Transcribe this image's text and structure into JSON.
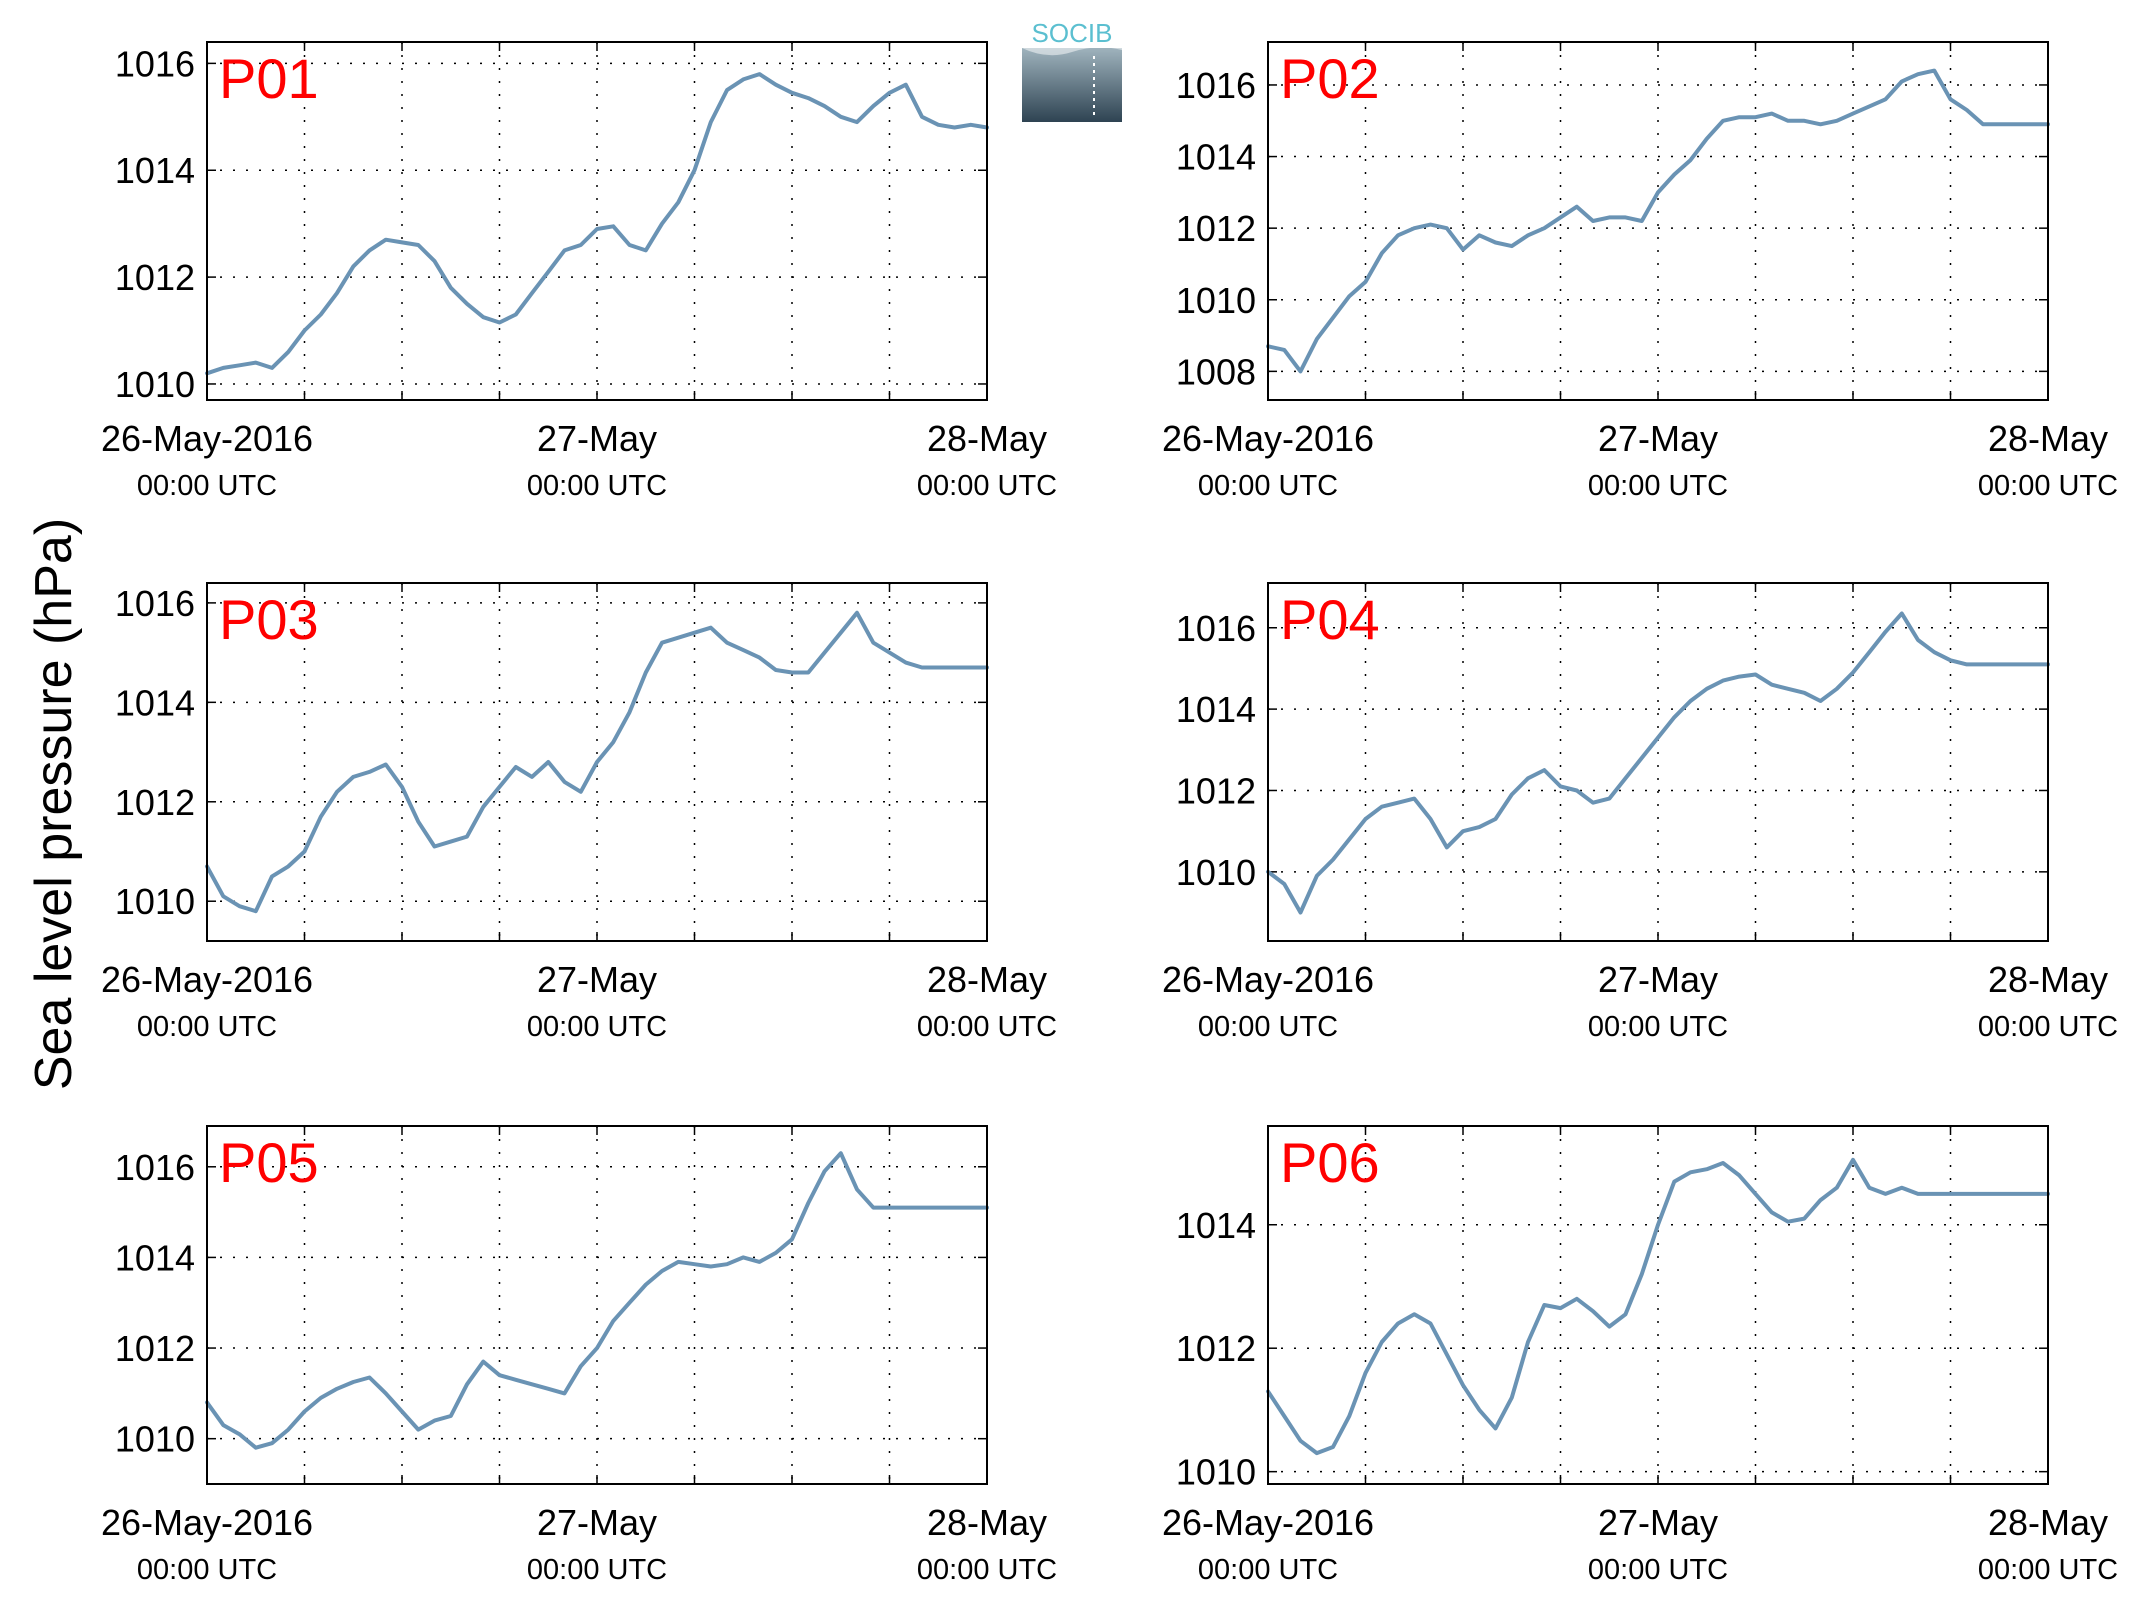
{
  "figure": {
    "ylabel": "Sea level pressure (hPa)",
    "logo_text": "SOCIB",
    "line_color": "#6a93b4",
    "label_color": "#ff0000"
  },
  "chart_data": [
    {
      "type": "line",
      "title": "P01",
      "x_ticks": [
        {
          "label": "26-May-2016",
          "sub": "00:00 UTC"
        },
        {
          "label": "27-May",
          "sub": "00:00 UTC"
        },
        {
          "label": "28-May",
          "sub": "00:00 UTC"
        }
      ],
      "xlim": [
        0,
        48
      ],
      "ylim": [
        1009.7,
        1016.4
      ],
      "yticks": [
        1010,
        1012,
        1014,
        1016
      ],
      "grid": true,
      "x": [
        0,
        1,
        2,
        3,
        4,
        5,
        6,
        7,
        8,
        9,
        10,
        11,
        12,
        13,
        14,
        15,
        16,
        17,
        18,
        19,
        20,
        21,
        22,
        23,
        24,
        25,
        26,
        27,
        28,
        29,
        30,
        31,
        32,
        33,
        34,
        35,
        36,
        37,
        38,
        39,
        40,
        41,
        42,
        43,
        44,
        45,
        46,
        47,
        48
      ],
      "y": [
        1010.2,
        1010.3,
        1010.35,
        1010.4,
        1010.3,
        1010.6,
        1011.0,
        1011.3,
        1011.7,
        1012.2,
        1012.5,
        1012.7,
        1012.65,
        1012.6,
        1012.3,
        1011.8,
        1011.5,
        1011.25,
        1011.15,
        1011.3,
        1011.7,
        1012.1,
        1012.5,
        1012.6,
        1012.9,
        1012.95,
        1012.6,
        1012.5,
        1013.0,
        1013.4,
        1014.0,
        1014.9,
        1015.5,
        1015.7,
        1015.8,
        1015.6,
        1015.45,
        1015.35,
        1015.2,
        1015.0,
        1014.9,
        1015.2,
        1015.45,
        1015.6,
        1015.0,
        1014.85,
        1014.8,
        1014.85,
        1014.8
      ]
    },
    {
      "type": "line",
      "title": "P02",
      "x_ticks": [
        {
          "label": "26-May-2016",
          "sub": "00:00 UTC"
        },
        {
          "label": "27-May",
          "sub": "00:00 UTC"
        },
        {
          "label": "28-May",
          "sub": "00:00 UTC"
        }
      ],
      "xlim": [
        0,
        48
      ],
      "ylim": [
        1007.2,
        1017.2
      ],
      "yticks": [
        1008,
        1010,
        1012,
        1014,
        1016
      ],
      "grid": true,
      "x": [
        0,
        1,
        2,
        3,
        4,
        5,
        6,
        7,
        8,
        9,
        10,
        11,
        12,
        13,
        14,
        15,
        16,
        17,
        18,
        19,
        20,
        21,
        22,
        23,
        24,
        25,
        26,
        27,
        28,
        29,
        30,
        31,
        32,
        33,
        34,
        35,
        36,
        37,
        38,
        39,
        40,
        41,
        42,
        43,
        44,
        45,
        46,
        47,
        48
      ],
      "y": [
        1008.7,
        1008.6,
        1008.0,
        1008.9,
        1009.5,
        1010.1,
        1010.5,
        1011.3,
        1011.8,
        1012.0,
        1012.1,
        1012.0,
        1011.4,
        1011.8,
        1011.6,
        1011.5,
        1011.8,
        1012.0,
        1012.3,
        1012.6,
        1012.2,
        1012.3,
        1012.3,
        1012.2,
        1013.0,
        1013.5,
        1013.9,
        1014.5,
        1015.0,
        1015.1,
        1015.1,
        1015.2,
        1015.0,
        1015.0,
        1014.9,
        1015.0,
        1015.2,
        1015.4,
        1015.6,
        1016.1,
        1016.3,
        1016.4,
        1015.6,
        1015.3,
        1014.9,
        1014.9,
        1014.9,
        1014.9,
        1014.9
      ]
    },
    {
      "type": "line",
      "title": "P03",
      "x_ticks": [
        {
          "label": "26-May-2016",
          "sub": "00:00 UTC"
        },
        {
          "label": "27-May",
          "sub": "00:00 UTC"
        },
        {
          "label": "28-May",
          "sub": "00:00 UTC"
        }
      ],
      "xlim": [
        0,
        48
      ],
      "ylim": [
        1009.2,
        1016.4
      ],
      "yticks": [
        1010,
        1012,
        1014,
        1016
      ],
      "grid": true,
      "x": [
        0,
        1,
        2,
        3,
        4,
        5,
        6,
        7,
        8,
        9,
        10,
        11,
        12,
        13,
        14,
        15,
        16,
        17,
        18,
        19,
        20,
        21,
        22,
        23,
        24,
        25,
        26,
        27,
        28,
        29,
        30,
        31,
        32,
        33,
        34,
        35,
        36,
        37,
        38,
        39,
        40,
        41,
        42,
        43,
        44,
        45,
        46,
        47,
        48
      ],
      "y": [
        1010.7,
        1010.1,
        1009.9,
        1009.8,
        1010.5,
        1010.7,
        1011.0,
        1011.7,
        1012.2,
        1012.5,
        1012.6,
        1012.75,
        1012.3,
        1011.6,
        1011.1,
        1011.2,
        1011.3,
        1011.9,
        1012.3,
        1012.7,
        1012.5,
        1012.8,
        1012.4,
        1012.2,
        1012.8,
        1013.2,
        1013.8,
        1014.6,
        1015.2,
        1015.3,
        1015.4,
        1015.5,
        1015.2,
        1015.05,
        1014.9,
        1014.65,
        1014.6,
        1014.6,
        1015.0,
        1015.4,
        1015.8,
        1015.2,
        1015.0,
        1014.8,
        1014.7,
        1014.7,
        1014.7,
        1014.7,
        1014.7
      ]
    },
    {
      "type": "line",
      "title": "P04",
      "x_ticks": [
        {
          "label": "26-May-2016",
          "sub": "00:00 UTC"
        },
        {
          "label": "27-May",
          "sub": "00:00 UTC"
        },
        {
          "label": "28-May",
          "sub": "00:00 UTC"
        }
      ],
      "xlim": [
        0,
        48
      ],
      "ylim": [
        1008.3,
        1017.1
      ],
      "yticks": [
        1010,
        1012,
        1014,
        1016
      ],
      "grid": true,
      "x": [
        0,
        1,
        2,
        3,
        4,
        5,
        6,
        7,
        8,
        9,
        10,
        11,
        12,
        13,
        14,
        15,
        16,
        17,
        18,
        19,
        20,
        21,
        22,
        23,
        24,
        25,
        26,
        27,
        28,
        29,
        30,
        31,
        32,
        33,
        34,
        35,
        36,
        37,
        38,
        39,
        40,
        41,
        42,
        43,
        44,
        45,
        46,
        47,
        48
      ],
      "y": [
        1010.0,
        1009.7,
        1009.0,
        1009.9,
        1010.3,
        1010.8,
        1011.3,
        1011.6,
        1011.7,
        1011.8,
        1011.3,
        1010.6,
        1011.0,
        1011.1,
        1011.3,
        1011.9,
        1012.3,
        1012.5,
        1012.1,
        1012.0,
        1011.7,
        1011.8,
        1012.3,
        1012.8,
        1013.3,
        1013.8,
        1014.2,
        1014.5,
        1014.7,
        1014.8,
        1014.85,
        1014.6,
        1014.5,
        1014.4,
        1014.2,
        1014.5,
        1014.9,
        1015.4,
        1015.9,
        1016.35,
        1015.7,
        1015.4,
        1015.2,
        1015.1,
        1015.1,
        1015.1,
        1015.1,
        1015.1,
        1015.1
      ]
    },
    {
      "type": "line",
      "title": "P05",
      "x_ticks": [
        {
          "label": "26-May-2016",
          "sub": "00:00 UTC"
        },
        {
          "label": "27-May",
          "sub": "00:00 UTC"
        },
        {
          "label": "28-May",
          "sub": "00:00 UTC"
        }
      ],
      "xlim": [
        0,
        48
      ],
      "ylim": [
        1009.0,
        1016.9
      ],
      "yticks": [
        1010,
        1012,
        1014,
        1016
      ],
      "grid": true,
      "x": [
        0,
        1,
        2,
        3,
        4,
        5,
        6,
        7,
        8,
        9,
        10,
        11,
        12,
        13,
        14,
        15,
        16,
        17,
        18,
        19,
        20,
        21,
        22,
        23,
        24,
        25,
        26,
        27,
        28,
        29,
        30,
        31,
        32,
        33,
        34,
        35,
        36,
        37,
        38,
        39,
        40,
        41,
        42,
        43,
        44,
        45,
        46,
        47,
        48
      ],
      "y": [
        1010.8,
        1010.3,
        1010.1,
        1009.8,
        1009.9,
        1010.2,
        1010.6,
        1010.9,
        1011.1,
        1011.25,
        1011.35,
        1011.0,
        1010.6,
        1010.2,
        1010.4,
        1010.5,
        1011.2,
        1011.7,
        1011.4,
        1011.3,
        1011.2,
        1011.1,
        1011.0,
        1011.6,
        1012.0,
        1012.6,
        1013.0,
        1013.4,
        1013.7,
        1013.9,
        1013.85,
        1013.8,
        1013.85,
        1014.0,
        1013.9,
        1014.1,
        1014.4,
        1015.2,
        1015.9,
        1016.3,
        1015.5,
        1015.1,
        1015.1,
        1015.1,
        1015.1,
        1015.1,
        1015.1,
        1015.1,
        1015.1
      ]
    },
    {
      "type": "line",
      "title": "P06",
      "x_ticks": [
        {
          "label": "26-May-2016",
          "sub": "00:00 UTC"
        },
        {
          "label": "27-May",
          "sub": "00:00 UTC"
        },
        {
          "label": "28-May",
          "sub": "00:00 UTC"
        }
      ],
      "xlim": [
        0,
        48
      ],
      "ylim": [
        1009.8,
        1015.6
      ],
      "yticks": [
        1010,
        1012,
        1014
      ],
      "grid": true,
      "x": [
        0,
        1,
        2,
        3,
        4,
        5,
        6,
        7,
        8,
        9,
        10,
        11,
        12,
        13,
        14,
        15,
        16,
        17,
        18,
        19,
        20,
        21,
        22,
        23,
        24,
        25,
        26,
        27,
        28,
        29,
        30,
        31,
        32,
        33,
        34,
        35,
        36,
        37,
        38,
        39,
        40,
        41,
        42,
        43,
        44,
        45,
        46,
        47,
        48
      ],
      "y": [
        1011.3,
        1010.9,
        1010.5,
        1010.3,
        1010.4,
        1010.9,
        1011.6,
        1012.1,
        1012.4,
        1012.55,
        1012.4,
        1011.9,
        1011.4,
        1011.0,
        1010.7,
        1011.2,
        1012.1,
        1012.7,
        1012.65,
        1012.8,
        1012.6,
        1012.35,
        1012.55,
        1013.2,
        1014.0,
        1014.7,
        1014.85,
        1014.9,
        1015.0,
        1014.8,
        1014.5,
        1014.2,
        1014.05,
        1014.1,
        1014.4,
        1014.6,
        1015.05,
        1014.6,
        1014.5,
        1014.6,
        1014.5,
        1014.5,
        1014.5,
        1014.5,
        1014.5,
        1014.5,
        1014.5,
        1014.5,
        1014.5
      ]
    }
  ]
}
